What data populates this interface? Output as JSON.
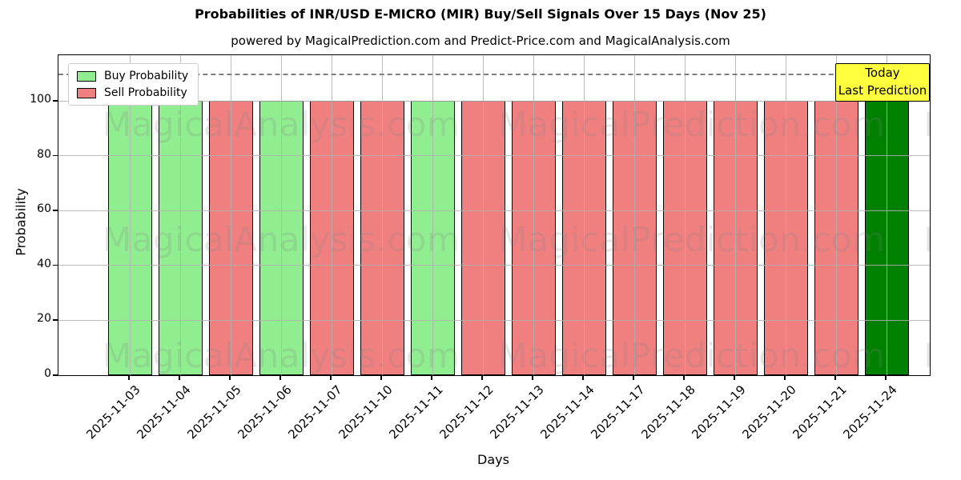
{
  "chart_data": {
    "type": "bar",
    "title": "Probabilities of INR/USD E-MICRO (MIR) Buy/Sell Signals Over 15 Days (Nov 25)",
    "subtitle": "powered by MagicalPrediction.com and Predict-Price.com and MagicalAnalysis.com",
    "xlabel": "Days",
    "ylabel": "Probability",
    "ylim": [
      0,
      116.6
    ],
    "yticks": [
      0,
      20,
      40,
      60,
      80,
      100
    ],
    "grid": true,
    "dashed_line_y": 110,
    "bar_edge_color": "#000000",
    "colors": {
      "buy": "#90ee90",
      "sell": "#f08080",
      "today": "#008000"
    },
    "categories": [
      "2025-11-03",
      "2025-11-04",
      "2025-11-05",
      "2025-11-06",
      "2025-11-07",
      "2025-11-10",
      "2025-11-11",
      "2025-11-12",
      "2025-11-13",
      "2025-11-14",
      "2025-11-17",
      "2025-11-18",
      "2025-11-19",
      "2025-11-20",
      "2025-11-21",
      "2025-11-24"
    ],
    "bars": [
      {
        "date": "2025-11-03",
        "signal": "buy",
        "value": 100
      },
      {
        "date": "2025-11-04",
        "signal": "buy",
        "value": 100
      },
      {
        "date": "2025-11-05",
        "signal": "sell",
        "value": 100
      },
      {
        "date": "2025-11-06",
        "signal": "buy",
        "value": 100
      },
      {
        "date": "2025-11-07",
        "signal": "sell",
        "value": 100
      },
      {
        "date": "2025-11-10",
        "signal": "sell",
        "value": 100
      },
      {
        "date": "2025-11-11",
        "signal": "buy",
        "value": 100
      },
      {
        "date": "2025-11-12",
        "signal": "sell",
        "value": 100
      },
      {
        "date": "2025-11-13",
        "signal": "sell",
        "value": 100
      },
      {
        "date": "2025-11-14",
        "signal": "sell",
        "value": 100
      },
      {
        "date": "2025-11-17",
        "signal": "sell",
        "value": 100
      },
      {
        "date": "2025-11-18",
        "signal": "sell",
        "value": 100
      },
      {
        "date": "2025-11-19",
        "signal": "sell",
        "value": 100
      },
      {
        "date": "2025-11-20",
        "signal": "sell",
        "value": 100
      },
      {
        "date": "2025-11-21",
        "signal": "sell",
        "value": 100
      },
      {
        "date": "2025-11-24",
        "signal": "today",
        "value": 100
      }
    ],
    "legend": {
      "position": "upper-left",
      "entries": [
        {
          "label": "Buy Probability",
          "color": "#90ee90"
        },
        {
          "label": "Sell Probability",
          "color": "#f08080"
        }
      ]
    },
    "annotation": {
      "lines": [
        "Today",
        "Last Prediction"
      ],
      "bg": "#ffff3d",
      "border": "#000000"
    },
    "watermarks": [
      "MagicalAnalysis.com",
      "MagicalPrediction.com"
    ]
  }
}
